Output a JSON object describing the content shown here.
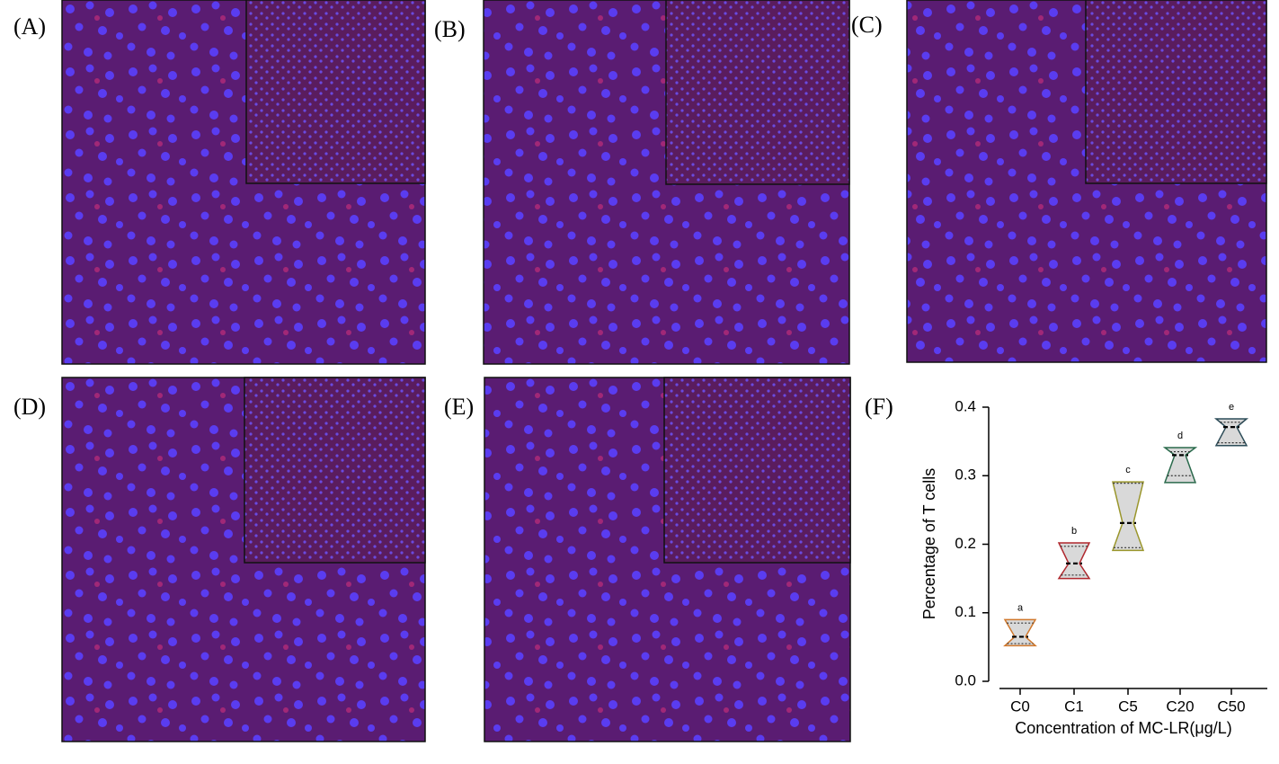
{
  "panels": [
    "(A)",
    "(B)",
    "(C)",
    "(D)",
    "(E)",
    "(F)"
  ],
  "chart_data": {
    "type": "violin",
    "x_label": "Concentration of MC-LR(μg/L)",
    "y_label": "Percentage of T cells",
    "categories": [
      "C0",
      "C1",
      "C5",
      "C20",
      "C50"
    ],
    "colors": [
      "#d0782c",
      "#b0282e",
      "#9a962c",
      "#2a6a4c",
      "#2c4c58"
    ],
    "letters": [
      "a",
      "b",
      "c",
      "d",
      "e"
    ],
    "min": [
      0.052,
      0.15,
      0.191,
      0.29,
      0.344
    ],
    "q1": [
      0.055,
      0.155,
      0.195,
      0.3,
      0.348
    ],
    "median": [
      0.065,
      0.172,
      0.231,
      0.33,
      0.371
    ],
    "q3": [
      0.085,
      0.197,
      0.289,
      0.335,
      0.378
    ],
    "max": [
      0.09,
      0.202,
      0.291,
      0.341,
      0.383
    ],
    "ylim": [
      0,
      0.4
    ],
    "yticks": [
      {
        "value": 0,
        "label": "0.0"
      },
      0.1,
      0.2,
      0.3,
      0.4
    ]
  }
}
